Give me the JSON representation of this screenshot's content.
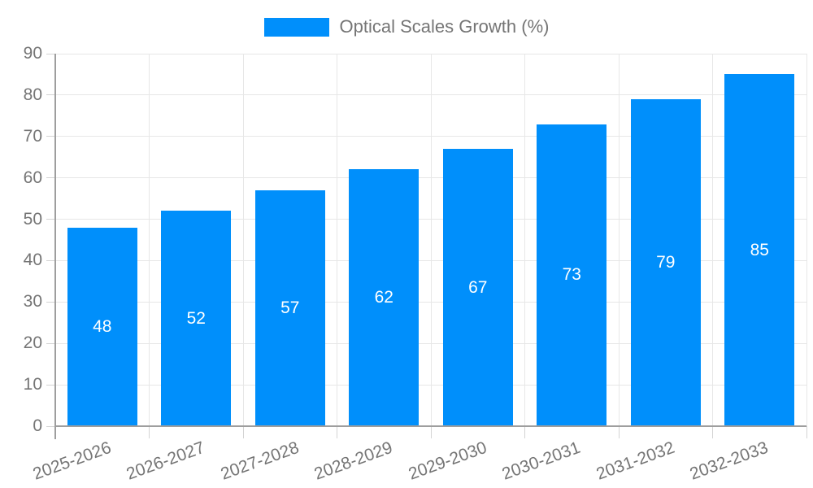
{
  "chart_data": {
    "type": "bar",
    "title": "",
    "legend_entries": [
      "Optical Scales Growth (%)"
    ],
    "legend_position": "top",
    "categories": [
      "2025-2026",
      "2026-2027",
      "2027-2028",
      "2028-2029",
      "2029-2030",
      "2030-2031",
      "2031-2032",
      "2032-2033"
    ],
    "values": [
      48,
      52,
      57,
      62,
      67,
      73,
      79,
      85
    ],
    "xlabel": "",
    "ylabel": "",
    "ylim": [
      0,
      90
    ],
    "yticks": [
      0,
      10,
      20,
      30,
      40,
      50,
      60,
      70,
      80,
      90
    ],
    "grid": true,
    "colors": {
      "bar": "#008FFB",
      "bar_label_text": "#ffffff",
      "axis_text": "#757575",
      "grid_line": "#e7e7e7",
      "tick_line": "#d4d4d4",
      "axis_line": "#9e9e9e",
      "background": "#ffffff"
    }
  }
}
